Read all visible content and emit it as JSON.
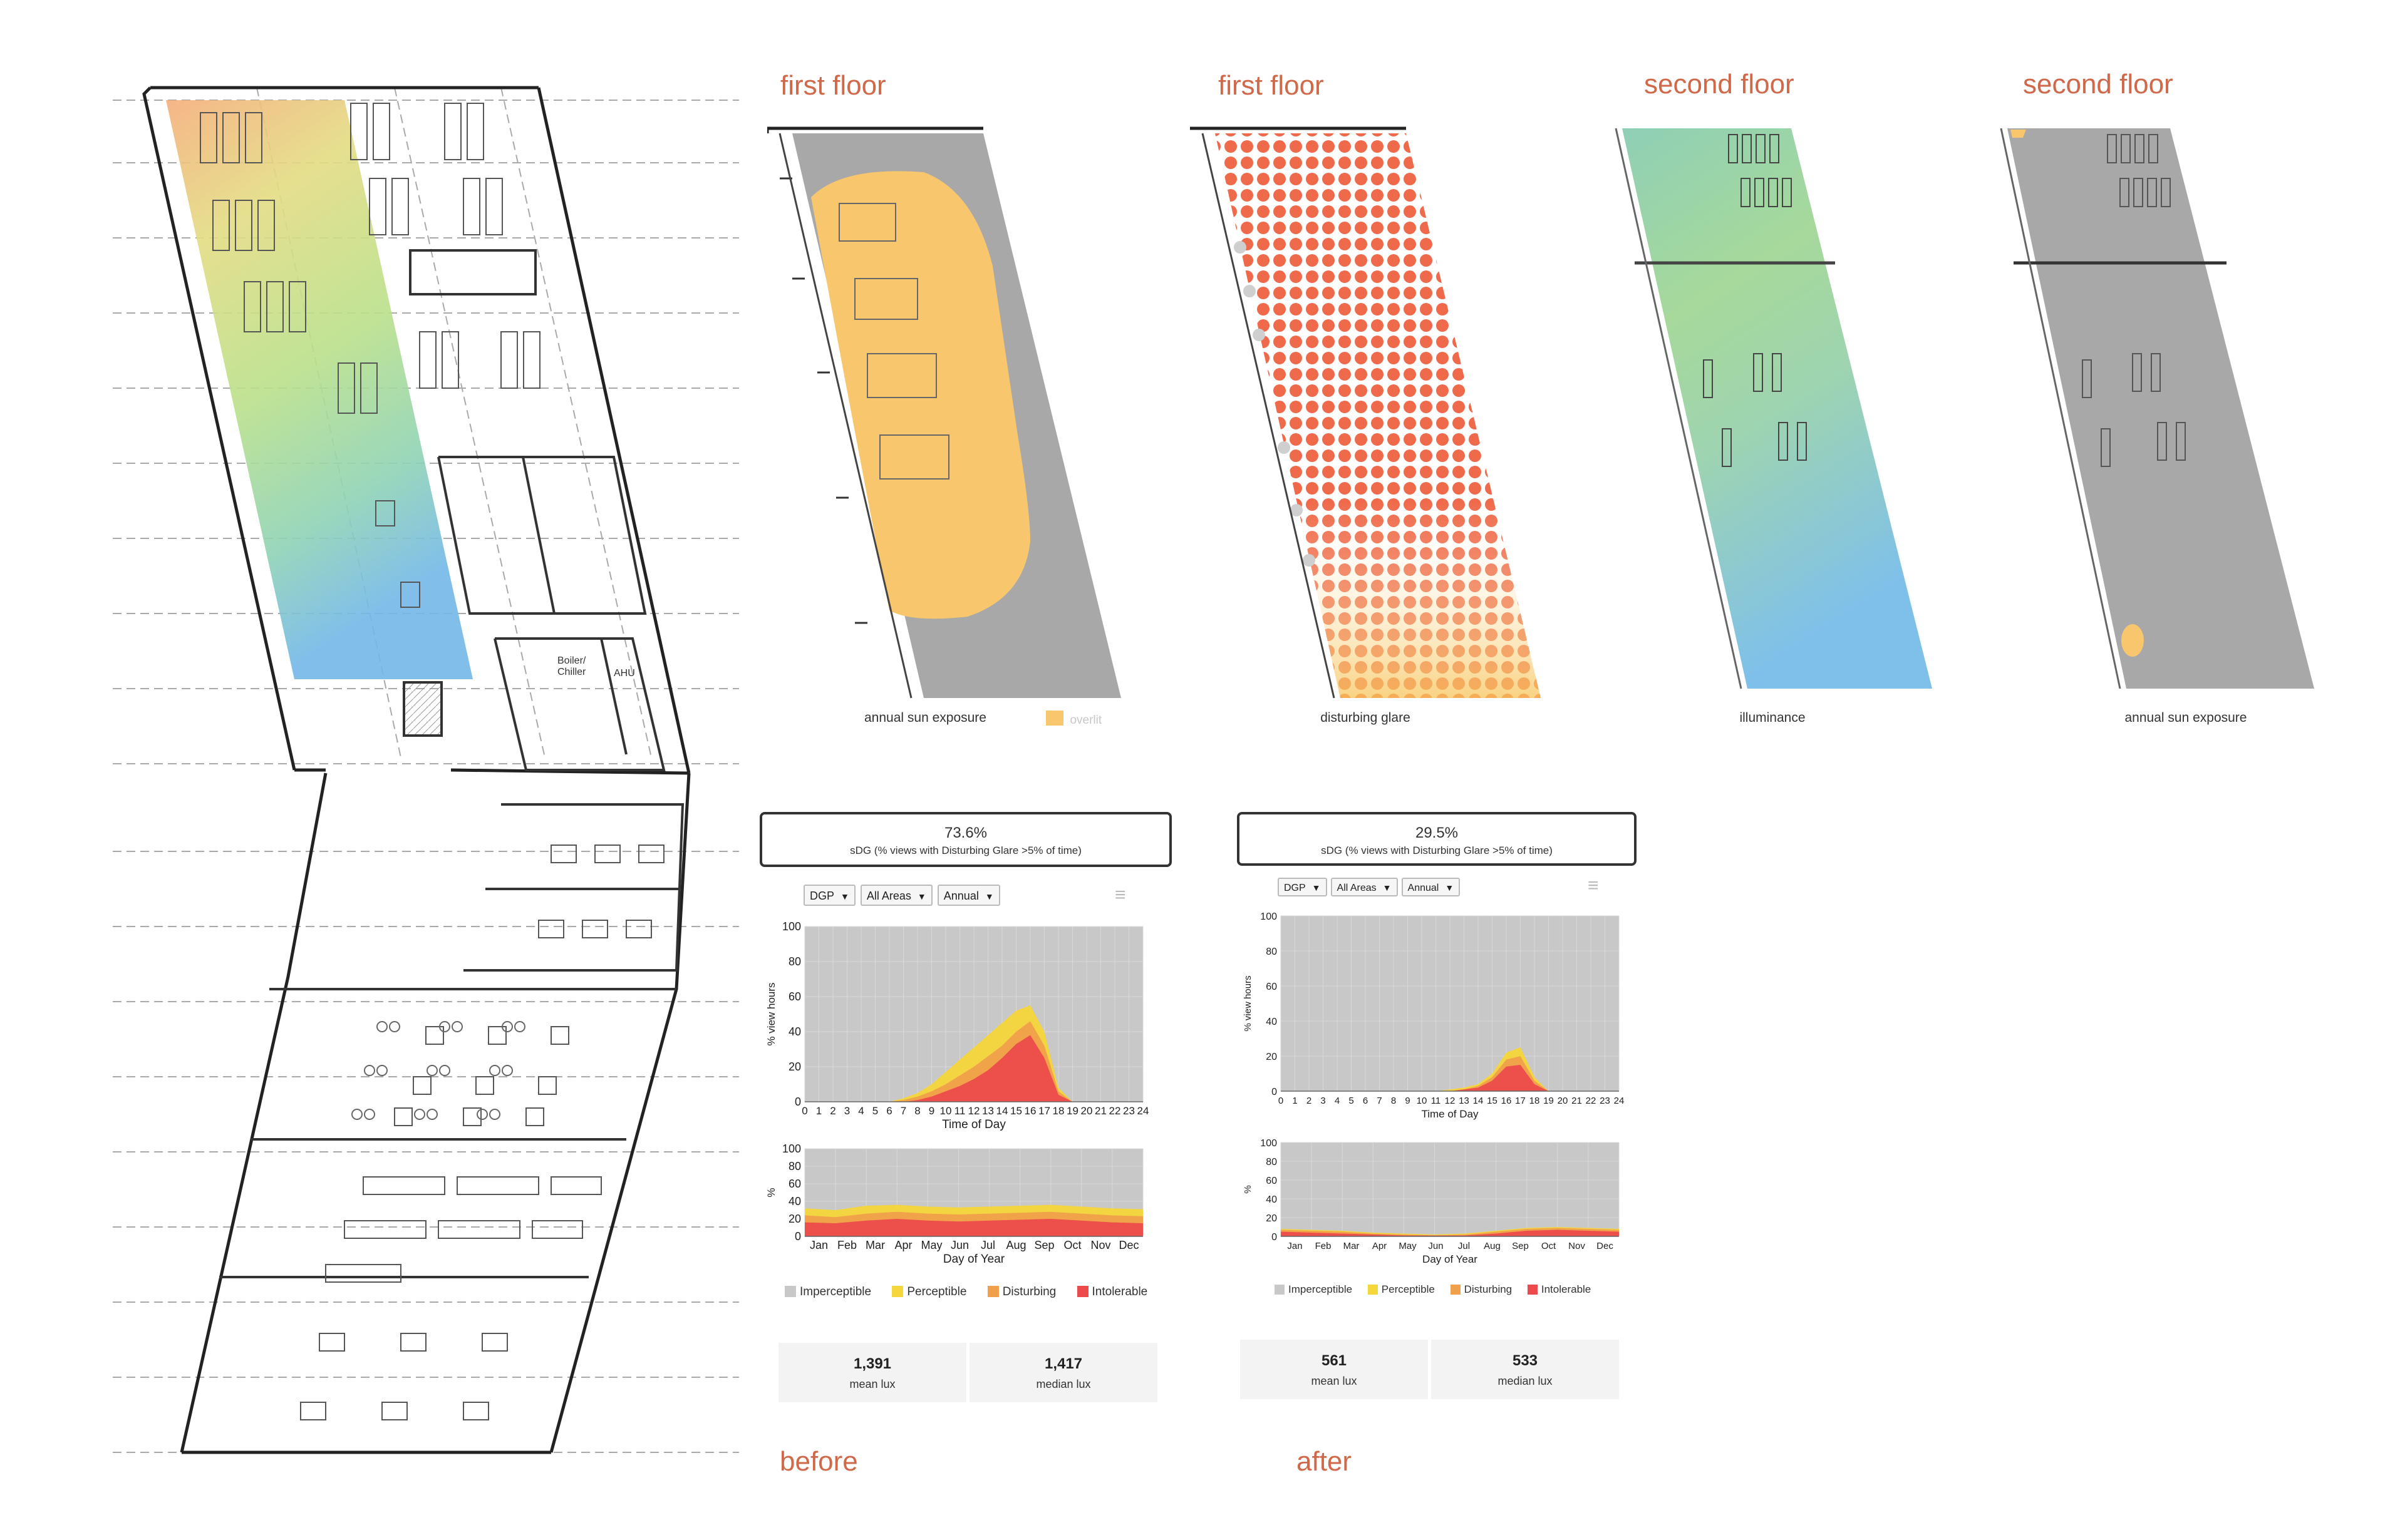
{
  "colors": {
    "accent": "#d0684a",
    "imperceptible": "#c8c8c8",
    "perceptible": "#f5d63b",
    "disturbing": "#f0a04b",
    "intolerable": "#ec4b4b",
    "overlit": "#f7c66d"
  },
  "plans": [
    {
      "title": "first floor",
      "caption": "annual sun exposure",
      "legend": "overlit"
    },
    {
      "title": "first floor",
      "caption": "disturbing glare"
    },
    {
      "title": "second floor",
      "caption": "illuminance"
    },
    {
      "title": "second floor",
      "caption": "annual sun exposure"
    }
  ],
  "panels": {
    "before": {
      "label": "before",
      "sdg_value": "73.6%",
      "sdg_label": "sDG (% views with Disturbing Glare >5% of time)",
      "controls": [
        "DGP",
        "All Areas",
        "Annual"
      ],
      "legend": [
        "Imperceptible",
        "Perceptible",
        "Disturbing",
        "Intolerable"
      ],
      "mean_lux": "1,391",
      "mean_lux_label": "mean lux",
      "median_lux": "1,417",
      "median_lux_label": "median lux"
    },
    "after": {
      "label": "after",
      "sdg_value": "29.5%",
      "sdg_label": "sDG (% views with Disturbing Glare >5% of time)",
      "controls": [
        "DGP",
        "All Areas",
        "Annual"
      ],
      "legend": [
        "Imperceptible",
        "Perceptible",
        "Disturbing",
        "Intolerable"
      ],
      "mean_lux": "561",
      "mean_lux_label": "mean lux",
      "median_lux": "533",
      "median_lux_label": "median lux"
    }
  },
  "room_labels": [
    "Boiler/ Chiller",
    "AHU"
  ],
  "chart_data": [
    {
      "type": "area",
      "panel": "before",
      "ylabel": "% view hours",
      "xlabel": "Time of Day",
      "x": [
        0,
        1,
        2,
        3,
        4,
        5,
        6,
        7,
        8,
        9,
        10,
        11,
        12,
        13,
        14,
        15,
        16,
        17,
        18,
        19,
        20,
        21,
        22,
        23,
        24
      ],
      "ylim": [
        0,
        100
      ],
      "yticks": [
        0,
        20,
        40,
        60,
        80,
        100
      ],
      "series": [
        {
          "name": "Perceptible",
          "values": [
            0,
            0,
            0,
            0,
            0,
            0,
            0,
            2,
            5,
            10,
            17,
            24,
            31,
            38,
            45,
            52,
            55,
            40,
            8,
            0,
            0,
            0,
            0,
            0,
            0
          ]
        },
        {
          "name": "Disturbing",
          "values": [
            0,
            0,
            0,
            0,
            0,
            0,
            0,
            1,
            3,
            6,
            10,
            15,
            20,
            26,
            32,
            40,
            46,
            32,
            6,
            0,
            0,
            0,
            0,
            0,
            0
          ]
        },
        {
          "name": "Intolerable",
          "values": [
            0,
            0,
            0,
            0,
            0,
            0,
            0,
            0,
            1,
            3,
            6,
            9,
            13,
            18,
            25,
            33,
            38,
            25,
            4,
            0,
            0,
            0,
            0,
            0,
            0
          ]
        }
      ]
    },
    {
      "type": "area",
      "panel": "before",
      "ylabel": "%",
      "xlabel": "Day of Year",
      "categories": [
        "Jan",
        "Feb",
        "Mar",
        "Apr",
        "May",
        "Jun",
        "Jul",
        "Aug",
        "Sep",
        "Oct",
        "Nov",
        "Dec"
      ],
      "ylim": [
        0,
        100
      ],
      "yticks": [
        0,
        20,
        40,
        60,
        80,
        100
      ],
      "series": [
        {
          "name": "Perceptible",
          "values": [
            32,
            30,
            35,
            36,
            34,
            33,
            34,
            35,
            36,
            34,
            32,
            31
          ]
        },
        {
          "name": "Disturbing",
          "values": [
            24,
            22,
            26,
            28,
            26,
            25,
            26,
            27,
            28,
            26,
            24,
            23
          ]
        },
        {
          "name": "Intolerable",
          "values": [
            16,
            15,
            18,
            20,
            18,
            17,
            18,
            19,
            20,
            18,
            16,
            15
          ]
        }
      ]
    },
    {
      "type": "area",
      "panel": "after",
      "ylabel": "% view hours",
      "xlabel": "Time of Day",
      "x": [
        0,
        1,
        2,
        3,
        4,
        5,
        6,
        7,
        8,
        9,
        10,
        11,
        12,
        13,
        14,
        15,
        16,
        17,
        18,
        19,
        20,
        21,
        22,
        23,
        24
      ],
      "ylim": [
        0,
        100
      ],
      "yticks": [
        0,
        20,
        40,
        60,
        80,
        100
      ],
      "series": [
        {
          "name": "Perceptible",
          "values": [
            0,
            0,
            0,
            0,
            0,
            0,
            0,
            0,
            0,
            0,
            0,
            0,
            1,
            2,
            4,
            10,
            22,
            25,
            8,
            0,
            0,
            0,
            0,
            0,
            0
          ]
        },
        {
          "name": "Disturbing",
          "values": [
            0,
            0,
            0,
            0,
            0,
            0,
            0,
            0,
            0,
            0,
            0,
            0,
            0,
            1,
            3,
            8,
            18,
            20,
            6,
            0,
            0,
            0,
            0,
            0,
            0
          ]
        },
        {
          "name": "Intolerable",
          "values": [
            0,
            0,
            0,
            0,
            0,
            0,
            0,
            0,
            0,
            0,
            0,
            0,
            0,
            1,
            2,
            6,
            14,
            15,
            4,
            0,
            0,
            0,
            0,
            0,
            0
          ]
        }
      ]
    },
    {
      "type": "area",
      "panel": "after",
      "ylabel": "%",
      "xlabel": "Day of Year",
      "categories": [
        "Jan",
        "Feb",
        "Mar",
        "Apr",
        "May",
        "Jun",
        "Jul",
        "Aug",
        "Sep",
        "Oct",
        "Nov",
        "Dec"
      ],
      "ylim": [
        0,
        100
      ],
      "yticks": [
        0,
        20,
        40,
        60,
        80,
        100
      ],
      "series": [
        {
          "name": "Perceptible",
          "values": [
            8,
            7,
            6,
            4,
            3,
            2,
            3,
            6,
            9,
            10,
            9,
            8
          ]
        },
        {
          "name": "Disturbing",
          "values": [
            7,
            6,
            5,
            3,
            2,
            1,
            2,
            5,
            8,
            9,
            8,
            7
          ]
        },
        {
          "name": "Intolerable",
          "values": [
            5,
            4,
            3,
            2,
            1,
            1,
            1,
            3,
            6,
            7,
            6,
            5
          ]
        }
      ]
    }
  ]
}
